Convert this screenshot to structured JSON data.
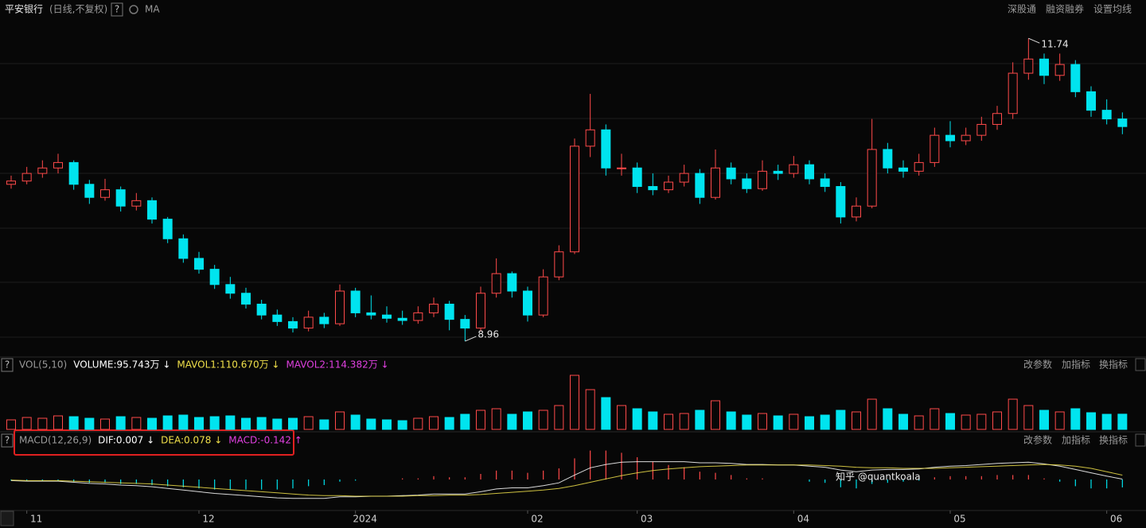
{
  "ui": {
    "help": "?",
    "header_right": [
      "深股通",
      "融资融券",
      "设置均线"
    ],
    "panel_tools": [
      "改参数",
      "加指标",
      "换指标"
    ],
    "watermark": "知乎 @quantkoala"
  },
  "chart_data": [
    {
      "type": "candlestick",
      "title": "平安银行",
      "subtitle": "(日线,不复权)",
      "indicator": "MA",
      "up_color": "#ff4a4a",
      "down_color": "#00e4ef",
      "categories": [
        null,
        "11",
        null,
        null,
        null,
        null,
        null,
        null,
        null,
        null,
        null,
        null,
        "12",
        null,
        null,
        null,
        null,
        null,
        null,
        null,
        null,
        null,
        "2024",
        null,
        null,
        null,
        null,
        null,
        null,
        null,
        null,
        null,
        null,
        "02",
        null,
        null,
        null,
        null,
        null,
        null,
        "03",
        null,
        null,
        null,
        null,
        null,
        null,
        null,
        null,
        null,
        "04",
        null,
        null,
        null,
        null,
        null,
        null,
        null,
        null,
        null,
        "05",
        null,
        null,
        null,
        null,
        null,
        null,
        null,
        null,
        null,
        "06",
        null
      ],
      "candles": [
        [
          10.4,
          10.48,
          10.36,
          10.43
        ],
        [
          10.43,
          10.56,
          10.4,
          10.5
        ],
        [
          10.5,
          10.62,
          10.46,
          10.55
        ],
        [
          10.55,
          10.68,
          10.5,
          10.6
        ],
        [
          10.6,
          10.62,
          10.35,
          10.4
        ],
        [
          10.4,
          10.44,
          10.22,
          10.28
        ],
        [
          10.28,
          10.45,
          10.25,
          10.35
        ],
        [
          10.35,
          10.38,
          10.15,
          10.2
        ],
        [
          10.2,
          10.32,
          10.16,
          10.25
        ],
        [
          10.25,
          10.28,
          10.04,
          10.08
        ],
        [
          10.08,
          10.1,
          9.86,
          9.9
        ],
        [
          9.9,
          9.94,
          9.68,
          9.72
        ],
        [
          9.72,
          9.78,
          9.58,
          9.62
        ],
        [
          9.62,
          9.66,
          9.44,
          9.48
        ],
        [
          9.48,
          9.55,
          9.35,
          9.4
        ],
        [
          9.4,
          9.45,
          9.26,
          9.3
        ],
        [
          9.3,
          9.34,
          9.16,
          9.2
        ],
        [
          9.2,
          9.25,
          9.1,
          9.14
        ],
        [
          9.14,
          9.18,
          9.04,
          9.08
        ],
        [
          9.08,
          9.24,
          9.05,
          9.18
        ],
        [
          9.18,
          9.22,
          9.08,
          9.12
        ],
        [
          9.12,
          9.48,
          9.1,
          9.42
        ],
        [
          9.42,
          9.45,
          9.18,
          9.22
        ],
        [
          9.22,
          9.38,
          9.16,
          9.2
        ],
        [
          9.2,
          9.28,
          9.13,
          9.17
        ],
        [
          9.17,
          9.24,
          9.11,
          9.15
        ],
        [
          9.15,
          9.28,
          9.12,
          9.22
        ],
        [
          9.22,
          9.36,
          9.18,
          9.3
        ],
        [
          9.3,
          9.33,
          9.06,
          9.16
        ],
        [
          9.16,
          9.2,
          8.96,
          9.08
        ],
        [
          9.08,
          9.46,
          9.05,
          9.4
        ],
        [
          9.4,
          9.72,
          9.36,
          9.58
        ],
        [
          9.58,
          9.6,
          9.36,
          9.42
        ],
        [
          9.42,
          9.46,
          9.14,
          9.2
        ],
        [
          9.2,
          9.62,
          9.18,
          9.55
        ],
        [
          9.55,
          9.84,
          9.52,
          9.78
        ],
        [
          9.78,
          10.82,
          9.76,
          10.75
        ],
        [
          10.75,
          11.23,
          10.65,
          10.9
        ],
        [
          10.9,
          10.95,
          10.48,
          10.55
        ],
        [
          10.55,
          10.68,
          10.48,
          10.55
        ],
        [
          10.55,
          10.6,
          10.32,
          10.38
        ],
        [
          10.38,
          10.5,
          10.3,
          10.35
        ],
        [
          10.35,
          10.48,
          10.32,
          10.42
        ],
        [
          10.42,
          10.58,
          10.38,
          10.5
        ],
        [
          10.5,
          10.54,
          10.22,
          10.28
        ],
        [
          10.28,
          10.72,
          10.26,
          10.55
        ],
        [
          10.55,
          10.6,
          10.4,
          10.45
        ],
        [
          10.45,
          10.5,
          10.32,
          10.36
        ],
        [
          10.36,
          10.62,
          10.34,
          10.52
        ],
        [
          10.52,
          10.58,
          10.44,
          10.5
        ],
        [
          10.5,
          10.66,
          10.46,
          10.58
        ],
        [
          10.58,
          10.62,
          10.4,
          10.45
        ],
        [
          10.45,
          10.5,
          10.33,
          10.38
        ],
        [
          10.38,
          10.42,
          10.04,
          10.1
        ],
        [
          10.1,
          10.28,
          10.06,
          10.2
        ],
        [
          10.2,
          11.0,
          10.18,
          10.72
        ],
        [
          10.72,
          10.78,
          10.5,
          10.55
        ],
        [
          10.55,
          10.62,
          10.46,
          10.52
        ],
        [
          10.52,
          10.68,
          10.48,
          10.6
        ],
        [
          10.6,
          10.92,
          10.56,
          10.85
        ],
        [
          10.85,
          10.98,
          10.74,
          10.8
        ],
        [
          10.8,
          10.92,
          10.76,
          10.85
        ],
        [
          10.85,
          11.02,
          10.8,
          10.95
        ],
        [
          10.95,
          11.12,
          10.9,
          11.05
        ],
        [
          11.05,
          11.52,
          11.0,
          11.42
        ],
        [
          11.42,
          11.74,
          11.36,
          11.55
        ],
        [
          11.55,
          11.6,
          11.32,
          11.4
        ],
        [
          11.4,
          11.6,
          11.35,
          11.5
        ],
        [
          11.5,
          11.54,
          11.2,
          11.25
        ],
        [
          11.25,
          11.3,
          11.02,
          11.08
        ],
        [
          11.08,
          11.18,
          10.95,
          11.0
        ],
        [
          11.0,
          11.06,
          10.86,
          10.93
        ]
      ],
      "ylim": [
        8.88,
        11.8
      ],
      "annotations": [
        {
          "label": "11.74",
          "value": 11.74,
          "at": "high"
        },
        {
          "label": "8.96",
          "value": 8.96,
          "at": "low"
        }
      ]
    },
    {
      "type": "bar",
      "legend": [
        {
          "text": "VOL(5,10)",
          "color": "#9a9a9a"
        },
        {
          "text": "VOLUME:95.743万 ↓",
          "color": "#ffffff"
        },
        {
          "text": "MAVOL1:110.670万 ↓",
          "color": "#f0e04a"
        },
        {
          "text": "MAVOL2:114.382万 ↓",
          "color": "#e040e0"
        }
      ],
      "values": [
        60,
        75,
        70,
        85,
        80,
        70,
        65,
        80,
        75,
        70,
        85,
        90,
        75,
        80,
        85,
        70,
        75,
        65,
        70,
        80,
        60,
        110,
        90,
        65,
        60,
        55,
        70,
        80,
        75,
        95,
        120,
        130,
        95,
        110,
        120,
        150,
        340,
        250,
        200,
        150,
        130,
        110,
        95,
        100,
        120,
        180,
        110,
        90,
        100,
        85,
        95,
        80,
        90,
        120,
        110,
        190,
        130,
        95,
        85,
        130,
        100,
        90,
        95,
        110,
        190,
        150,
        120,
        110,
        130,
        105,
        95,
        95.743
      ],
      "ylim": [
        0,
        360
      ]
    },
    {
      "type": "combo",
      "legend": [
        {
          "text": "MACD(12,26,9)",
          "color": "#9a9a9a"
        },
        {
          "text": "DIF:0.007 ↓",
          "color": "#ffffff"
        },
        {
          "text": "DEA:0.078 ↓",
          "color": "#f0e04a"
        },
        {
          "text": "MACD:-0.142 ↑",
          "color": "#e040e0"
        }
      ],
      "series": [
        {
          "type": "bar",
          "up_color": "#ff4a4a",
          "down_color": "#00e4ef",
          "values": [
            -0.02,
            -0.02,
            -0.02,
            -0.02,
            -0.04,
            -0.06,
            -0.06,
            -0.08,
            -0.08,
            -0.1,
            -0.12,
            -0.14,
            -0.16,
            -0.18,
            -0.18,
            -0.18,
            -0.18,
            -0.18,
            -0.16,
            -0.12,
            -0.1,
            -0.04,
            -0.02,
            0.0,
            0.0,
            0.02,
            0.02,
            0.06,
            0.04,
            0.04,
            0.1,
            0.16,
            0.16,
            0.12,
            0.16,
            0.2,
            0.38,
            0.52,
            0.52,
            0.48,
            0.4,
            0.32,
            0.26,
            0.22,
            0.14,
            0.12,
            0.08,
            0.02,
            0.02,
            0.0,
            0.0,
            -0.04,
            -0.06,
            -0.14,
            -0.16,
            -0.08,
            -0.06,
            -0.04,
            -0.02,
            0.04,
            0.06,
            0.06,
            0.06,
            0.08,
            0.08,
            0.08,
            0.02,
            -0.04,
            -0.12,
            -0.16,
            -0.16,
            -0.142
          ]
        },
        {
          "type": "line",
          "color": "#ffffff",
          "values": [
            -0.02,
            -0.03,
            -0.03,
            -0.03,
            -0.05,
            -0.07,
            -0.08,
            -0.1,
            -0.11,
            -0.13,
            -0.16,
            -0.19,
            -0.22,
            -0.25,
            -0.27,
            -0.29,
            -0.31,
            -0.33,
            -0.34,
            -0.34,
            -0.34,
            -0.31,
            -0.31,
            -0.3,
            -0.3,
            -0.29,
            -0.28,
            -0.26,
            -0.26,
            -0.26,
            -0.22,
            -0.17,
            -0.15,
            -0.15,
            -0.11,
            -0.06,
            0.08,
            0.21,
            0.27,
            0.31,
            0.32,
            0.32,
            0.32,
            0.32,
            0.3,
            0.3,
            0.29,
            0.27,
            0.27,
            0.26,
            0.26,
            0.24,
            0.22,
            0.17,
            0.14,
            0.17,
            0.18,
            0.18,
            0.19,
            0.22,
            0.24,
            0.25,
            0.27,
            0.29,
            0.3,
            0.31,
            0.28,
            0.24,
            0.18,
            0.12,
            0.06,
            0.007
          ]
        },
        {
          "type": "line",
          "color": "#f0e04a",
          "values": [
            -0.01,
            -0.02,
            -0.02,
            -0.02,
            -0.03,
            -0.04,
            -0.05,
            -0.06,
            -0.07,
            -0.08,
            -0.1,
            -0.12,
            -0.14,
            -0.16,
            -0.18,
            -0.2,
            -0.22,
            -0.24,
            -0.26,
            -0.28,
            -0.29,
            -0.29,
            -0.3,
            -0.3,
            -0.3,
            -0.3,
            -0.29,
            -0.29,
            -0.28,
            -0.28,
            -0.27,
            -0.25,
            -0.23,
            -0.21,
            -0.19,
            -0.16,
            -0.11,
            -0.05,
            0.01,
            0.07,
            0.12,
            0.16,
            0.19,
            0.21,
            0.23,
            0.24,
            0.25,
            0.26,
            0.26,
            0.26,
            0.26,
            0.26,
            0.25,
            0.24,
            0.22,
            0.21,
            0.21,
            0.2,
            0.2,
            0.2,
            0.21,
            0.22,
            0.23,
            0.24,
            0.25,
            0.26,
            0.27,
            0.26,
            0.24,
            0.2,
            0.14,
            0.078
          ]
        }
      ],
      "ylim": [
        -0.5,
        0.5
      ]
    }
  ]
}
